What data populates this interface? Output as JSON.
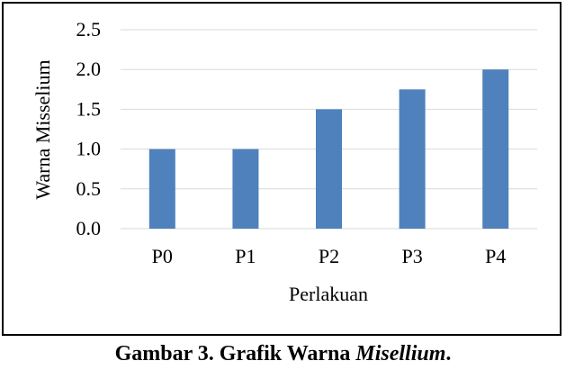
{
  "chart_data": {
    "type": "bar",
    "categories": [
      "P0",
      "P1",
      "P2",
      "P3",
      "P4"
    ],
    "values": [
      1.0,
      1.0,
      1.5,
      1.75,
      2.0
    ],
    "xlabel": "Perlakuan",
    "ylabel": "Warna Misselium",
    "ylim": [
      0,
      2.5
    ],
    "yticks": [
      "0.0",
      "0.5",
      "1.0",
      "1.5",
      "2.0",
      "2.5"
    ],
    "grid": true,
    "legend": "none",
    "bar_color": "#4f81bd",
    "grid_color": "#d9d9d9"
  },
  "caption": {
    "prefix": "Gambar 3. Grafik Warna ",
    "italic": "Misellium",
    "suffix": "."
  }
}
